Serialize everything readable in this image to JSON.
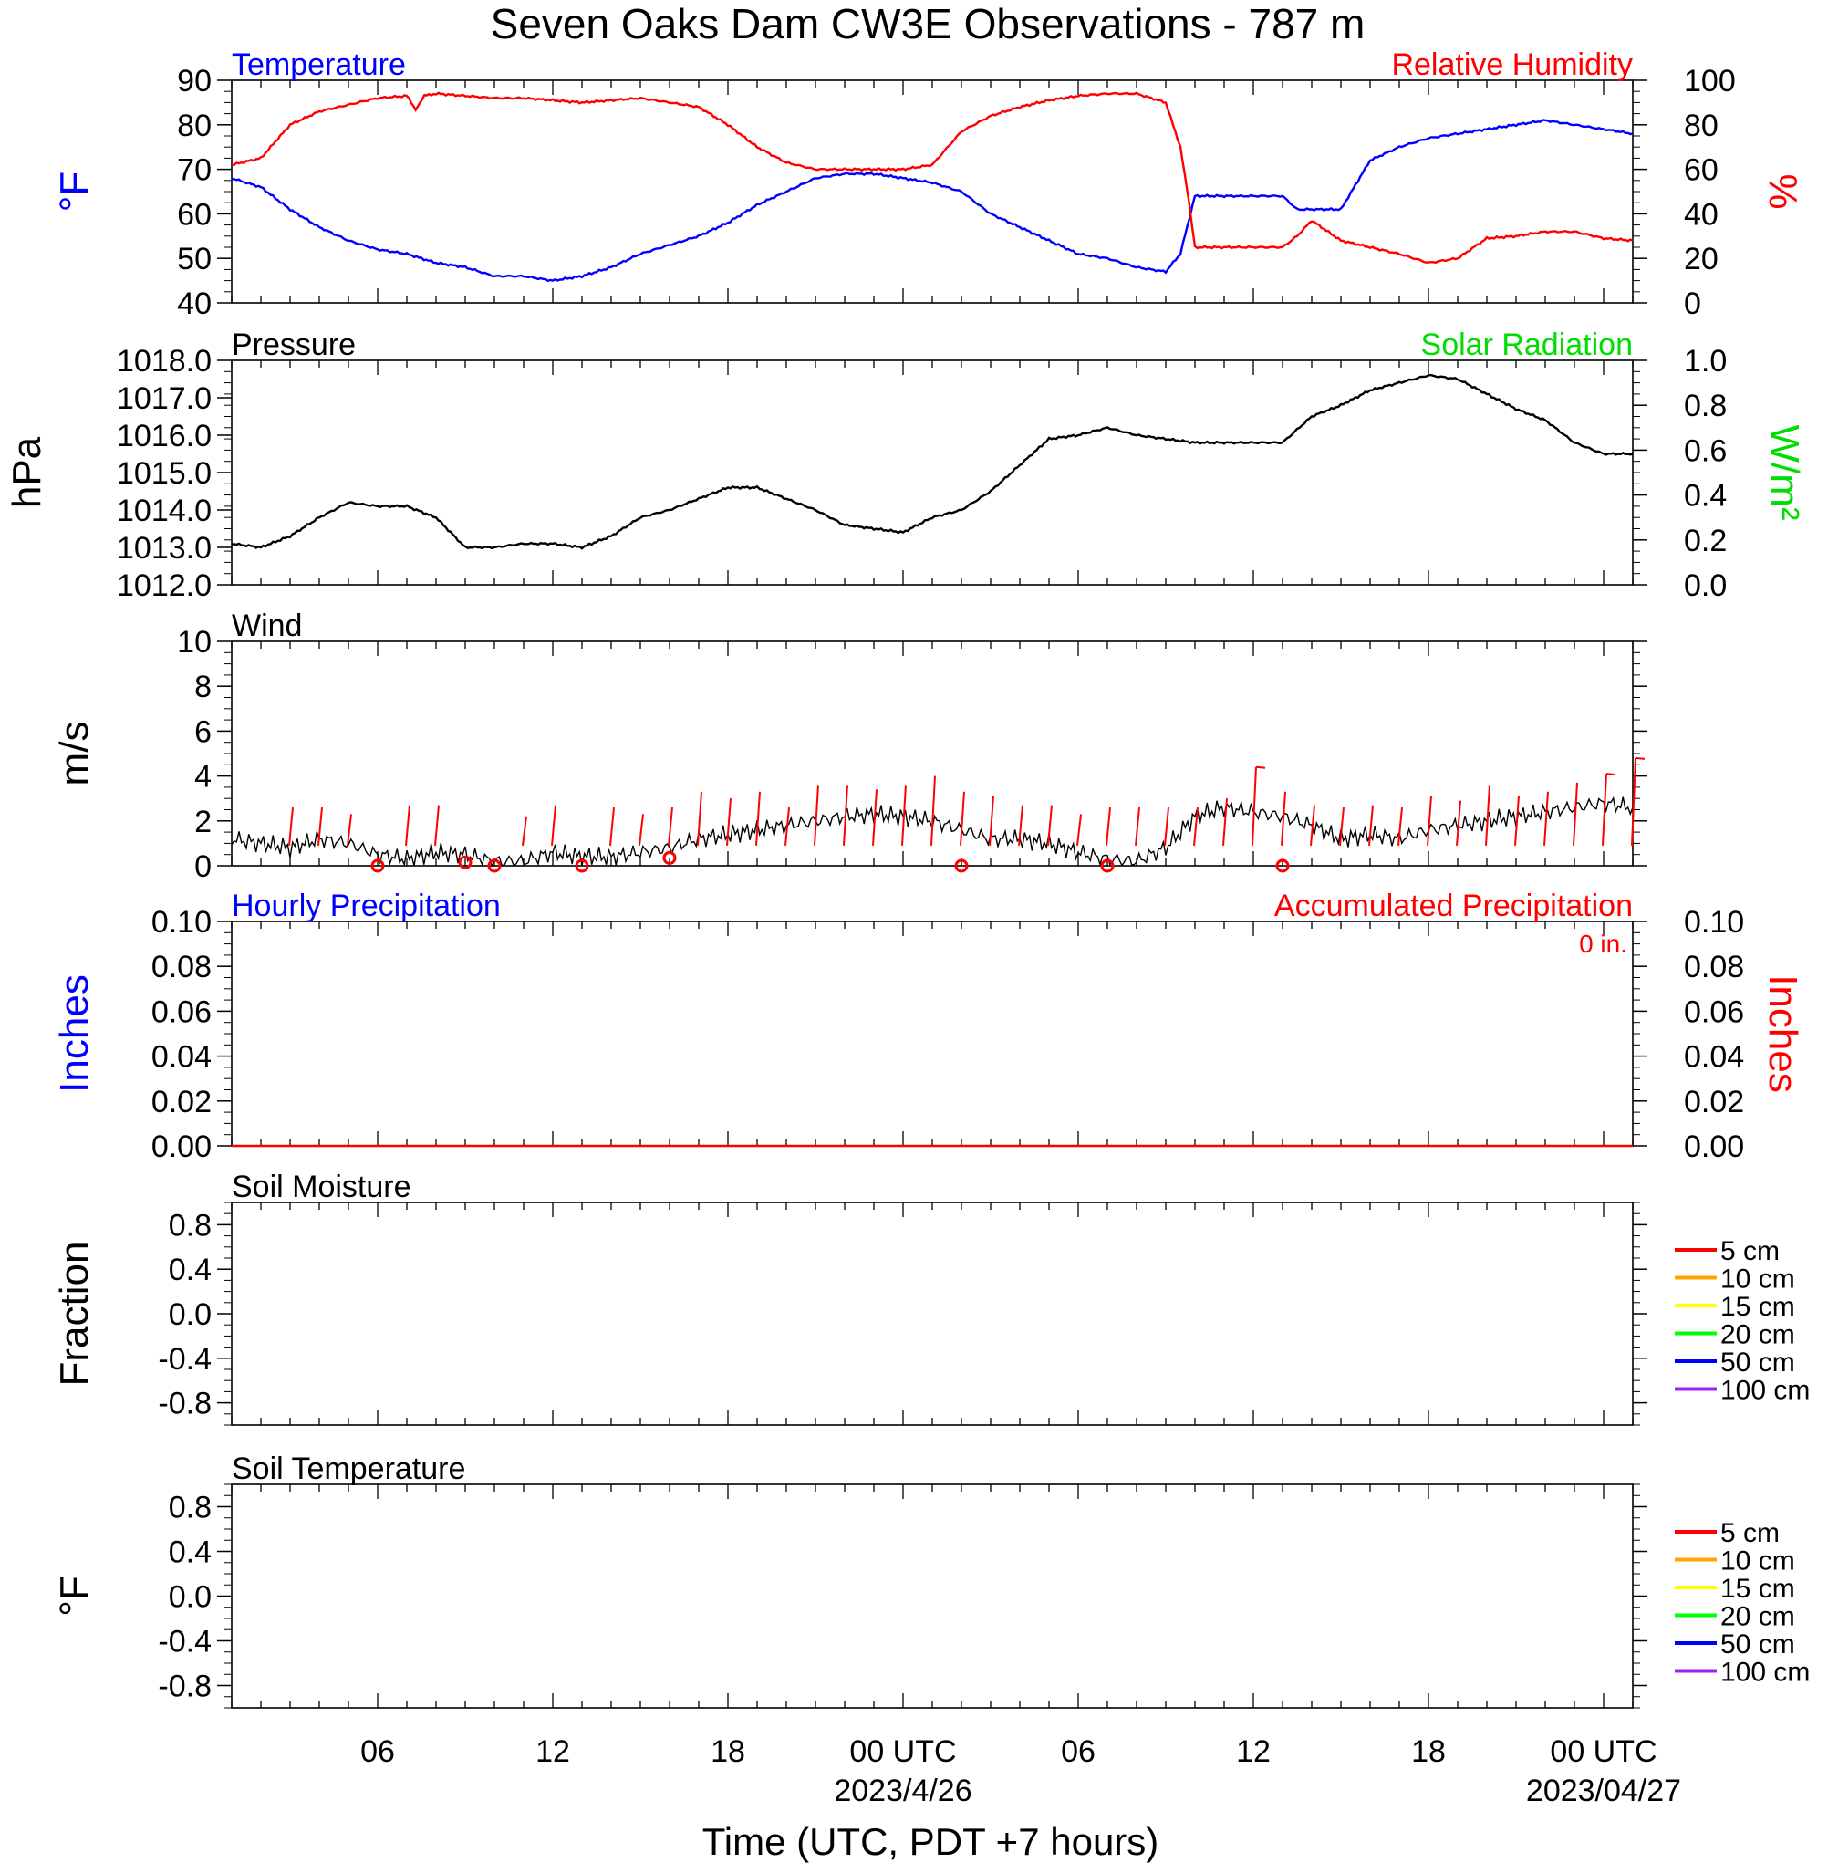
{
  "title": "Seven Oaks Dam CW3E Observations - 787 m",
  "xlabel": "Time (UTC, PDT +7 hours)",
  "x_axis": {
    "ticks": [
      {
        "x": 6,
        "label": "06",
        "sub": ""
      },
      {
        "x": 12,
        "label": "12",
        "sub": ""
      },
      {
        "x": 18,
        "label": "18",
        "sub": ""
      },
      {
        "x": 24,
        "label": "00 UTC",
        "sub": "2023/4/26"
      },
      {
        "x": 30,
        "label": "06",
        "sub": ""
      },
      {
        "x": 36,
        "label": "12",
        "sub": ""
      },
      {
        "x": 42,
        "label": "18",
        "sub": ""
      },
      {
        "x": 48,
        "label": "00 UTC",
        "sub": "2023/04/27"
      }
    ],
    "range_hours": [
      1,
      49
    ]
  },
  "colors": {
    "temperature": "#0000ff",
    "humidity": "#ff0000",
    "pressure": "#000000",
    "solar": "#00dd00",
    "wind": "#000000",
    "barb": "#ff0000"
  },
  "chart_data": [
    {
      "type": "line",
      "panel": "temperature_humidity",
      "left_label": "Temperature",
      "right_label": "Relative Humidity",
      "ylabel_left": "°F",
      "ylabel_right": "%",
      "ylim_left": [
        40,
        90
      ],
      "ylim_right": [
        0,
        100
      ],
      "left_ticks": [
        "90",
        "80",
        "70",
        "60",
        "50",
        "40"
      ],
      "right_ticks": [
        "100",
        "80",
        "60",
        "40",
        "20",
        "0"
      ],
      "series": [
        {
          "name": "Temperature",
          "axis": "left",
          "color": "#0000ff",
          "x": [
            1,
            2,
            3,
            4,
            5,
            6,
            7,
            8,
            9,
            10,
            11,
            12,
            13,
            14,
            15,
            16,
            17,
            18,
            19,
            20,
            21,
            22,
            23,
            24,
            25,
            26,
            27,
            28,
            29,
            30,
            31,
            32,
            33,
            33.5,
            34,
            35,
            36,
            37,
            37.5,
            38,
            39,
            40,
            41,
            42,
            43,
            44,
            45,
            46,
            47,
            48,
            49
          ],
          "y": [
            68,
            66,
            61,
            57,
            54,
            52,
            51,
            49,
            48,
            46,
            46,
            45,
            46,
            48,
            51,
            53,
            55,
            58,
            62,
            65,
            68,
            69,
            69,
            68,
            67,
            65,
            60,
            57,
            54,
            51,
            50,
            48,
            47,
            51,
            64,
            64,
            64,
            64,
            61,
            61,
            61,
            72,
            75,
            77,
            78,
            79,
            80,
            81,
            80,
            79,
            78
          ]
        },
        {
          "name": "Relative Humidity",
          "axis": "right",
          "color": "#ff0000",
          "x": [
            1,
            2,
            3,
            4,
            5,
            6,
            7,
            7.3,
            7.6,
            8,
            9,
            10,
            11,
            12,
            13,
            14,
            15,
            16,
            17,
            18,
            19,
            20,
            21,
            22,
            23,
            24,
            25,
            26,
            27,
            28,
            29,
            30,
            31,
            32,
            33,
            33.5,
            33.8,
            34,
            34.5,
            35,
            36,
            37,
            37.5,
            38,
            39,
            40,
            41,
            42,
            43,
            44,
            45,
            46,
            47,
            48,
            49
          ],
          "y": [
            62,
            65,
            80,
            86,
            89,
            92,
            93,
            87,
            93,
            94,
            93,
            92,
            92,
            91,
            90,
            91,
            92,
            90,
            88,
            80,
            70,
            63,
            60,
            60,
            60,
            60,
            62,
            77,
            84,
            88,
            91,
            93,
            94,
            94,
            90,
            70,
            45,
            25,
            25,
            25,
            25,
            25,
            30,
            37,
            28,
            25,
            22,
            18,
            20,
            29,
            30,
            32,
            32,
            29,
            28
          ]
        }
      ]
    },
    {
      "type": "line",
      "panel": "pressure_solar",
      "left_label": "Pressure",
      "right_label": "Solar Radiation",
      "ylabel_left": "hPa",
      "ylabel_right": "W/m²",
      "ylim_left": [
        1012,
        1018
      ],
      "ylim_right": [
        0,
        1
      ],
      "left_ticks": [
        "1018.0",
        "1017.0",
        "1016.0",
        "1015.0",
        "1014.0",
        "1013.0",
        "1012.0"
      ],
      "right_ticks": [
        "1.0",
        "0.8",
        "0.6",
        "0.4",
        "0.2",
        "0.0"
      ],
      "series": [
        {
          "name": "Pressure",
          "axis": "left",
          "color": "#000000",
          "x": [
            1,
            2,
            3,
            4,
            5,
            6,
            7,
            8,
            9,
            10,
            11,
            12,
            13,
            14,
            15,
            16,
            17,
            18,
            19,
            20,
            21,
            22,
            23,
            24,
            25,
            26,
            27,
            28,
            29,
            30,
            31,
            32,
            33,
            34,
            35,
            36,
            37,
            38,
            39,
            40,
            41,
            42,
            43,
            44,
            45,
            46,
            47,
            48,
            49
          ],
          "y": [
            1013.1,
            1013.0,
            1013.3,
            1013.8,
            1014.2,
            1014.1,
            1014.1,
            1013.8,
            1013.0,
            1013.0,
            1013.1,
            1013.1,
            1013.0,
            1013.3,
            1013.8,
            1014.0,
            1014.3,
            1014.6,
            1014.6,
            1014.3,
            1014.0,
            1013.6,
            1013.5,
            1013.4,
            1013.8,
            1014.0,
            1014.5,
            1015.2,
            1015.9,
            1016.0,
            1016.2,
            1016.0,
            1015.9,
            1015.8,
            1015.8,
            1015.8,
            1015.8,
            1016.5,
            1016.8,
            1017.2,
            1017.4,
            1017.6,
            1017.5,
            1017.1,
            1016.7,
            1016.4,
            1015.8,
            1015.5,
            1015.5
          ]
        }
      ]
    },
    {
      "type": "line",
      "panel": "wind",
      "left_label": "Wind",
      "ylabel_left": "m/s",
      "ylim_left": [
        0,
        10
      ],
      "left_ticks": [
        "10",
        "8",
        "6",
        "4",
        "2",
        "0"
      ],
      "series": [
        {
          "name": "Wind",
          "axis": "left",
          "color": "#000000",
          "x": [
            1,
            2,
            3,
            4,
            5,
            6,
            7,
            8,
            9,
            10,
            11,
            12,
            13,
            14,
            15,
            16,
            17,
            18,
            19,
            20,
            21,
            22,
            23,
            24,
            25,
            26,
            27,
            28,
            29,
            30,
            31,
            32,
            33,
            34,
            35,
            36,
            37,
            38,
            39,
            40,
            41,
            42,
            43,
            44,
            45,
            46,
            47,
            48,
            49
          ],
          "y": [
            1.2,
            1.0,
            0.8,
            1.2,
            1.0,
            0.5,
            0.3,
            0.6,
            0.5,
            0.2,
            0.2,
            0.6,
            0.4,
            0.4,
            0.6,
            0.8,
            1.2,
            1.4,
            1.6,
            1.8,
            2.0,
            2.2,
            2.3,
            2.2,
            2.0,
            1.6,
            1.2,
            1.2,
            1.0,
            0.6,
            0.3,
            0.2,
            0.8,
            2.2,
            2.6,
            2.4,
            2.2,
            1.8,
            1.2,
            1.4,
            1.2,
            1.6,
            1.8,
            2.0,
            2.2,
            2.4,
            2.6,
            2.8,
            2.6
          ]
        },
        {
          "name": "Calm",
          "axis": "left",
          "color": "#ff0000",
          "x": [
            6,
            9,
            10,
            13,
            16,
            26,
            31,
            37
          ],
          "y": [
            0,
            0.15,
            0,
            0,
            0.35,
            0,
            0,
            0
          ]
        }
      ],
      "barbs": [
        {
          "x": 3,
          "speed": 2.6
        },
        {
          "x": 4,
          "speed": 2.6
        },
        {
          "x": 5,
          "speed": 2.3
        },
        {
          "x": 7,
          "speed": 2.7
        },
        {
          "x": 8,
          "speed": 2.7
        },
        {
          "x": 11,
          "speed": 2.2
        },
        {
          "x": 12,
          "speed": 2.7
        },
        {
          "x": 14,
          "speed": 2.6
        },
        {
          "x": 15,
          "speed": 2.3
        },
        {
          "x": 16,
          "speed": 2.6
        },
        {
          "x": 17,
          "speed": 3.3
        },
        {
          "x": 18,
          "speed": 3.0
        },
        {
          "x": 19,
          "speed": 3.3
        },
        {
          "x": 20,
          "speed": 2.6
        },
        {
          "x": 21,
          "speed": 3.6
        },
        {
          "x": 22,
          "speed": 3.6
        },
        {
          "x": 23,
          "speed": 3.4
        },
        {
          "x": 24,
          "speed": 3.6
        },
        {
          "x": 25,
          "speed": 4.0
        },
        {
          "x": 26,
          "speed": 3.3
        },
        {
          "x": 27,
          "speed": 3.1
        },
        {
          "x": 28,
          "speed": 2.7
        },
        {
          "x": 29,
          "speed": 2.7
        },
        {
          "x": 30,
          "speed": 2.3
        },
        {
          "x": 31,
          "speed": 2.6
        },
        {
          "x": 32,
          "speed": 2.6
        },
        {
          "x": 33,
          "speed": 2.6
        },
        {
          "x": 34,
          "speed": 2.6
        },
        {
          "x": 35,
          "speed": 3.0
        },
        {
          "x": 36,
          "speed": 4.4
        },
        {
          "x": 37,
          "speed": 3.3
        },
        {
          "x": 38,
          "speed": 2.7
        },
        {
          "x": 39,
          "speed": 2.6
        },
        {
          "x": 40,
          "speed": 2.7
        },
        {
          "x": 41,
          "speed": 2.6
        },
        {
          "x": 42,
          "speed": 3.1
        },
        {
          "x": 43,
          "speed": 2.9
        },
        {
          "x": 44,
          "speed": 3.6
        },
        {
          "x": 45,
          "speed": 3.1
        },
        {
          "x": 46,
          "speed": 3.3
        },
        {
          "x": 47,
          "speed": 3.7
        },
        {
          "x": 48,
          "speed": 4.1
        },
        {
          "x": 49,
          "speed": 4.8
        }
      ]
    },
    {
      "type": "line",
      "panel": "precipitation",
      "left_label": "Hourly Precipitation",
      "right_label": "Accumulated Precipitation",
      "annotation": "0 in.",
      "ylabel_left": "Inches",
      "ylabel_right": "Inches",
      "ylim_left": [
        0,
        0.1
      ],
      "ylim_right": [
        0,
        0.1
      ],
      "left_ticks": [
        "0.10",
        "0.08",
        "0.06",
        "0.04",
        "0.02",
        "0.00"
      ],
      "right_ticks": [
        "0.10",
        "0.08",
        "0.06",
        "0.04",
        "0.02",
        "0.00"
      ],
      "series": [
        {
          "name": "Accumulated Precipitation",
          "axis": "left",
          "color": "#ff0000",
          "x": [
            1,
            49
          ],
          "y": [
            0,
            0
          ]
        }
      ]
    },
    {
      "type": "line",
      "panel": "soil_moisture",
      "left_label": "Soil Moisture",
      "ylabel_left": "Fraction",
      "ylim_left": [
        -1,
        1
      ],
      "left_ticks": [
        "0.8",
        "0.4",
        "0.0",
        "-0.4",
        "-0.8"
      ],
      "legend": [
        {
          "label": "5 cm",
          "color": "#ff0000"
        },
        {
          "label": "10 cm",
          "color": "#ffa500"
        },
        {
          "label": "15 cm",
          "color": "#ffff00"
        },
        {
          "label": "20 cm",
          "color": "#00ff00"
        },
        {
          "label": "50 cm",
          "color": "#0000ff"
        },
        {
          "label": "100 cm",
          "color": "#a020f0"
        }
      ],
      "series": []
    },
    {
      "type": "line",
      "panel": "soil_temperature",
      "left_label": "Soil Temperature",
      "ylabel_left": "°F",
      "ylim_left": [
        -1,
        1
      ],
      "left_ticks": [
        "0.8",
        "0.4",
        "0.0",
        "-0.4",
        "-0.8"
      ],
      "legend": [
        {
          "label": "5 cm",
          "color": "#ff0000"
        },
        {
          "label": "10 cm",
          "color": "#ffa500"
        },
        {
          "label": "15 cm",
          "color": "#ffff00"
        },
        {
          "label": "20 cm",
          "color": "#00ff00"
        },
        {
          "label": "50 cm",
          "color": "#0000ff"
        },
        {
          "label": "100 cm",
          "color": "#a020f0"
        }
      ],
      "series": []
    }
  ]
}
